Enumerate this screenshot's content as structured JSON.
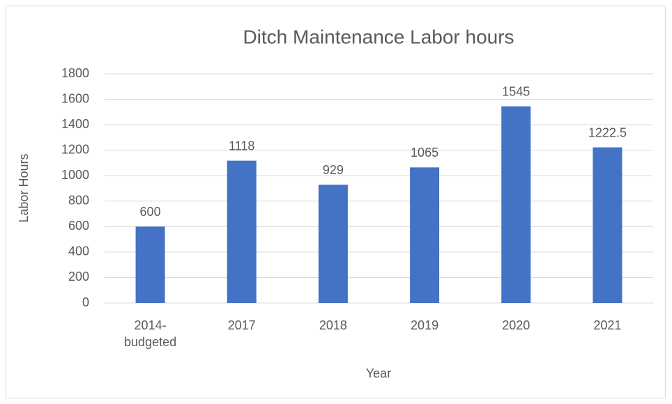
{
  "chart_data": {
    "type": "bar",
    "title": "Ditch Maintenance Labor hours",
    "x_label": "Year",
    "y_label": "Labor Hours",
    "categories": [
      "2014-budgeted",
      "2017",
      "2018",
      "2019",
      "2020",
      "2021"
    ],
    "values": [
      600,
      1118,
      929,
      1065,
      1545,
      1222.5
    ],
    "color": "#4472c4",
    "ylim": [
      0,
      1800
    ],
    "yticks": [
      0,
      200,
      400,
      600,
      800,
      1000,
      1200,
      1400,
      1600,
      1800
    ],
    "grid": true
  }
}
